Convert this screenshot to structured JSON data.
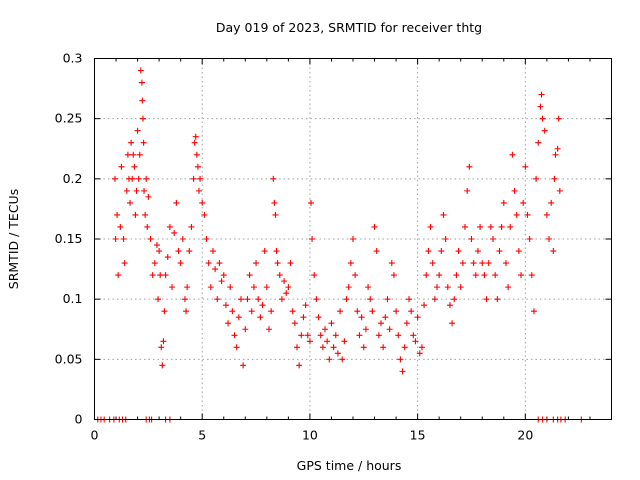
{
  "chart_data": {
    "type": "scatter",
    "title": "Day 019 of 2023, SRMTID for receiver thtg",
    "xlabel": "GPS time / hours",
    "ylabel": "SRMTID / TECUs",
    "xlim": [
      0,
      24
    ],
    "ylim": [
      0,
      0.3
    ],
    "x_ticks": [
      0,
      5,
      10,
      15,
      20
    ],
    "y_ticks": [
      0,
      0.05,
      0.1,
      0.15,
      0.2,
      0.25,
      0.3
    ],
    "x_tick_labels": [
      "0",
      "5",
      "10",
      "15",
      "20"
    ],
    "y_tick_labels": [
      "0",
      "0.05",
      "0.1",
      "0.15",
      "0.2",
      "0.25",
      "0.3"
    ],
    "grid": true,
    "marker": "+",
    "series_color": "#ff0000",
    "series": [
      {
        "name": "SRMTID",
        "points": [
          [
            0.15,
            0
          ],
          [
            0.3,
            0
          ],
          [
            0.45,
            0
          ],
          [
            0.7,
            0
          ],
          [
            0.9,
            0
          ],
          [
            1.15,
            0
          ],
          [
            1.3,
            0
          ],
          [
            1.45,
            0
          ],
          [
            2.4,
            0
          ],
          [
            2.55,
            0
          ],
          [
            2.65,
            0
          ],
          [
            3.3,
            0
          ],
          [
            3.5,
            0
          ],
          [
            20.6,
            0
          ],
          [
            20.8,
            0
          ],
          [
            21.0,
            0
          ],
          [
            21.3,
            0
          ],
          [
            21.5,
            0
          ],
          [
            21.65,
            0
          ],
          [
            21.85,
            0
          ],
          [
            22.6,
            0
          ],
          [
            0.95,
            0.2
          ],
          [
            0.98,
            0.15
          ],
          [
            1.05,
            0.17
          ],
          [
            1.1,
            0.12
          ],
          [
            1.2,
            0.16
          ],
          [
            1.25,
            0.21
          ],
          [
            1.35,
            0.15
          ],
          [
            1.4,
            0.13
          ],
          [
            1.5,
            0.19
          ],
          [
            1.55,
            0.22
          ],
          [
            1.6,
            0.2
          ],
          [
            1.65,
            0.18
          ],
          [
            1.7,
            0.23
          ],
          [
            1.75,
            0.2
          ],
          [
            1.8,
            0.22
          ],
          [
            1.85,
            0.21
          ],
          [
            1.9,
            0.17
          ],
          [
            1.95,
            0.19
          ],
          [
            2.0,
            0.24
          ],
          [
            2.05,
            0.2
          ],
          [
            2.1,
            0.22
          ],
          [
            2.15,
            0.29
          ],
          [
            2.2,
            0.28
          ],
          [
            2.22,
            0.265
          ],
          [
            2.25,
            0.25
          ],
          [
            2.28,
            0.23
          ],
          [
            2.3,
            0.19
          ],
          [
            2.35,
            0.17
          ],
          [
            2.4,
            0.2
          ],
          [
            2.45,
            0.16
          ],
          [
            2.5,
            0.185
          ],
          [
            2.6,
            0.15
          ],
          [
            2.7,
            0.12
          ],
          [
            2.8,
            0.13
          ],
          [
            2.9,
            0.145
          ],
          [
            2.95,
            0.1
          ],
          [
            3.0,
            0.14
          ],
          [
            3.05,
            0.12
          ],
          [
            3.1,
            0.06
          ],
          [
            3.15,
            0.045
          ],
          [
            3.2,
            0.065
          ],
          [
            3.25,
            0.09
          ],
          [
            3.3,
            0.12
          ],
          [
            3.4,
            0.135
          ],
          [
            3.5,
            0.16
          ],
          [
            3.6,
            0.11
          ],
          [
            3.7,
            0.155
          ],
          [
            3.8,
            0.18
          ],
          [
            3.9,
            0.14
          ],
          [
            4.0,
            0.13
          ],
          [
            4.1,
            0.15
          ],
          [
            4.2,
            0.1
          ],
          [
            4.25,
            0.09
          ],
          [
            4.3,
            0.11
          ],
          [
            4.4,
            0.14
          ],
          [
            4.5,
            0.16
          ],
          [
            4.6,
            0.2
          ],
          [
            4.65,
            0.23
          ],
          [
            4.7,
            0.235
          ],
          [
            4.75,
            0.22
          ],
          [
            4.8,
            0.21
          ],
          [
            4.85,
            0.19
          ],
          [
            4.9,
            0.2
          ],
          [
            5.0,
            0.18
          ],
          [
            5.1,
            0.17
          ],
          [
            5.2,
            0.15
          ],
          [
            5.3,
            0.13
          ],
          [
            5.4,
            0.11
          ],
          [
            5.5,
            0.14
          ],
          [
            5.6,
            0.125
          ],
          [
            5.7,
            0.1
          ],
          [
            5.8,
            0.13
          ],
          [
            5.9,
            0.115
          ],
          [
            6.0,
            0.12
          ],
          [
            6.1,
            0.095
          ],
          [
            6.2,
            0.08
          ],
          [
            6.3,
            0.11
          ],
          [
            6.4,
            0.09
          ],
          [
            6.5,
            0.07
          ],
          [
            6.6,
            0.06
          ],
          [
            6.7,
            0.085
          ],
          [
            6.8,
            0.1
          ],
          [
            6.9,
            0.045
          ],
          [
            7.0,
            0.075
          ],
          [
            7.1,
            0.1
          ],
          [
            7.2,
            0.12
          ],
          [
            7.3,
            0.09
          ],
          [
            7.4,
            0.11
          ],
          [
            7.5,
            0.13
          ],
          [
            7.6,
            0.1
          ],
          [
            7.7,
            0.085
          ],
          [
            7.8,
            0.095
          ],
          [
            7.9,
            0.14
          ],
          [
            8.0,
            0.11
          ],
          [
            8.1,
            0.075
          ],
          [
            8.2,
            0.09
          ],
          [
            8.3,
            0.2
          ],
          [
            8.35,
            0.18
          ],
          [
            8.4,
            0.17
          ],
          [
            8.45,
            0.14
          ],
          [
            8.5,
            0.13
          ],
          [
            8.6,
            0.12
          ],
          [
            8.7,
            0.1
          ],
          [
            8.8,
            0.115
          ],
          [
            8.9,
            0.105
          ],
          [
            9.0,
            0.11
          ],
          [
            9.1,
            0.13
          ],
          [
            9.2,
            0.09
          ],
          [
            9.3,
            0.08
          ],
          [
            9.4,
            0.06
          ],
          [
            9.5,
            0.045
          ],
          [
            9.6,
            0.07
          ],
          [
            9.7,
            0.085
          ],
          [
            9.8,
            0.095
          ],
          [
            9.9,
            0.07
          ],
          [
            10.0,
            0.065
          ],
          [
            10.05,
            0.18
          ],
          [
            10.1,
            0.15
          ],
          [
            10.2,
            0.12
          ],
          [
            10.3,
            0.1
          ],
          [
            10.4,
            0.085
          ],
          [
            10.5,
            0.07
          ],
          [
            10.6,
            0.06
          ],
          [
            10.7,
            0.075
          ],
          [
            10.8,
            0.065
          ],
          [
            10.9,
            0.05
          ],
          [
            11.0,
            0.08
          ],
          [
            11.1,
            0.06
          ],
          [
            11.2,
            0.07
          ],
          [
            11.3,
            0.055
          ],
          [
            11.4,
            0.09
          ],
          [
            11.5,
            0.05
          ],
          [
            11.6,
            0.065
          ],
          [
            11.7,
            0.1
          ],
          [
            11.8,
            0.11
          ],
          [
            11.9,
            0.13
          ],
          [
            12.0,
            0.15
          ],
          [
            12.1,
            0.12
          ],
          [
            12.2,
            0.09
          ],
          [
            12.3,
            0.07
          ],
          [
            12.4,
            0.085
          ],
          [
            12.5,
            0.06
          ],
          [
            12.6,
            0.075
          ],
          [
            12.7,
            0.11
          ],
          [
            12.8,
            0.1
          ],
          [
            12.9,
            0.09
          ],
          [
            13.0,
            0.16
          ],
          [
            13.1,
            0.14
          ],
          [
            13.2,
            0.07
          ],
          [
            13.3,
            0.08
          ],
          [
            13.4,
            0.06
          ],
          [
            13.5,
            0.085
          ],
          [
            13.6,
            0.1
          ],
          [
            13.7,
            0.075
          ],
          [
            13.8,
            0.13
          ],
          [
            13.9,
            0.12
          ],
          [
            14.0,
            0.09
          ],
          [
            14.1,
            0.07
          ],
          [
            14.2,
            0.05
          ],
          [
            14.3,
            0.04
          ],
          [
            14.4,
            0.06
          ],
          [
            14.5,
            0.08
          ],
          [
            14.6,
            0.1
          ],
          [
            14.7,
            0.09
          ],
          [
            14.8,
            0.07
          ],
          [
            14.9,
            0.065
          ],
          [
            15.0,
            0.085
          ],
          [
            15.1,
            0.055
          ],
          [
            15.2,
            0.06
          ],
          [
            15.3,
            0.095
          ],
          [
            15.4,
            0.12
          ],
          [
            15.5,
            0.14
          ],
          [
            15.6,
            0.16
          ],
          [
            15.7,
            0.13
          ],
          [
            15.8,
            0.1
          ],
          [
            15.9,
            0.11
          ],
          [
            16.0,
            0.12
          ],
          [
            16.1,
            0.14
          ],
          [
            16.2,
            0.17
          ],
          [
            16.3,
            0.15
          ],
          [
            16.4,
            0.11
          ],
          [
            16.5,
            0.095
          ],
          [
            16.6,
            0.08
          ],
          [
            16.7,
            0.1
          ],
          [
            16.8,
            0.12
          ],
          [
            16.9,
            0.14
          ],
          [
            17.0,
            0.11
          ],
          [
            17.1,
            0.13
          ],
          [
            17.2,
            0.16
          ],
          [
            17.3,
            0.19
          ],
          [
            17.4,
            0.21
          ],
          [
            17.5,
            0.15
          ],
          [
            17.6,
            0.13
          ],
          [
            17.7,
            0.12
          ],
          [
            17.8,
            0.14
          ],
          [
            17.9,
            0.16
          ],
          [
            18.0,
            0.13
          ],
          [
            18.1,
            0.12
          ],
          [
            18.2,
            0.1
          ],
          [
            18.3,
            0.13
          ],
          [
            18.4,
            0.16
          ],
          [
            18.5,
            0.15
          ],
          [
            18.6,
            0.12
          ],
          [
            18.7,
            0.1
          ],
          [
            18.8,
            0.14
          ],
          [
            18.9,
            0.16
          ],
          [
            19.0,
            0.18
          ],
          [
            19.1,
            0.13
          ],
          [
            19.2,
            0.11
          ],
          [
            19.3,
            0.16
          ],
          [
            19.4,
            0.22
          ],
          [
            19.5,
            0.19
          ],
          [
            19.6,
            0.17
          ],
          [
            19.7,
            0.14
          ],
          [
            19.8,
            0.12
          ],
          [
            19.9,
            0.18
          ],
          [
            20.0,
            0.21
          ],
          [
            20.1,
            0.17
          ],
          [
            20.2,
            0.15
          ],
          [
            20.3,
            0.12
          ],
          [
            20.4,
            0.09
          ],
          [
            20.5,
            0.2
          ],
          [
            20.6,
            0.23
          ],
          [
            20.7,
            0.26
          ],
          [
            20.75,
            0.27
          ],
          [
            20.8,
            0.25
          ],
          [
            20.9,
            0.24
          ],
          [
            21.0,
            0.17
          ],
          [
            21.1,
            0.15
          ],
          [
            21.2,
            0.18
          ],
          [
            21.3,
            0.14
          ],
          [
            21.35,
            0.2
          ],
          [
            21.4,
            0.22
          ],
          [
            21.5,
            0.225
          ],
          [
            21.55,
            0.25
          ],
          [
            21.6,
            0.19
          ]
        ]
      }
    ]
  }
}
